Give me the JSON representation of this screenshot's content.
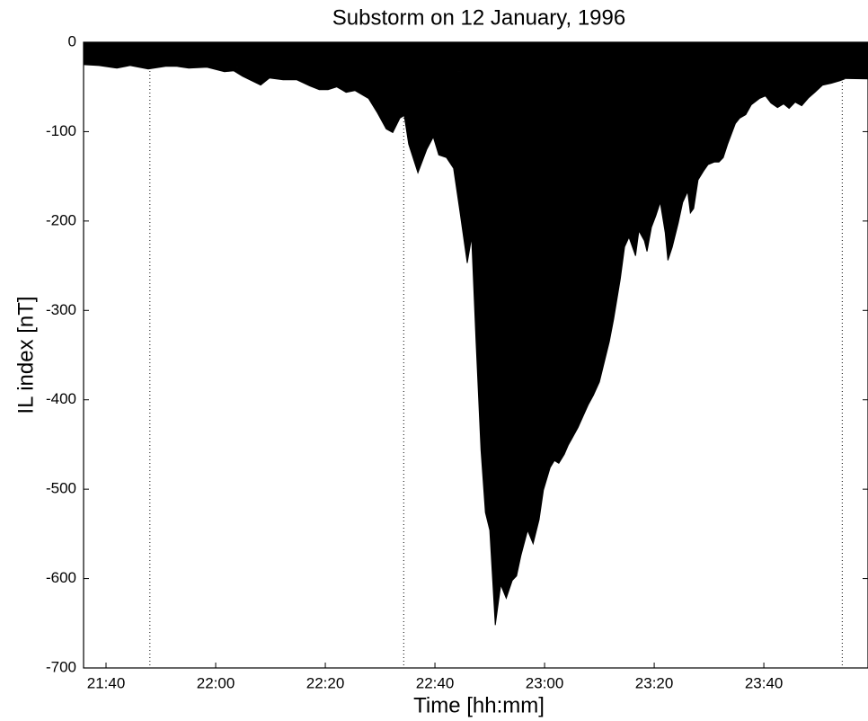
{
  "chart_data": {
    "type": "area",
    "title": "Substorm on 12 January, 1996",
    "x_label": "Time [hh:mm]",
    "y_label": "IL index [nT]",
    "color": "#000000",
    "xlim": [
      1295.9,
      1439
    ],
    "xticks": [
      {
        "value": 1300,
        "label": "21:40"
      },
      {
        "value": 1320,
        "label": "22:00"
      },
      {
        "value": 1340,
        "label": "22:20"
      },
      {
        "value": 1360,
        "label": "22:40"
      },
      {
        "value": 1380,
        "label": "23:00"
      },
      {
        "value": 1400,
        "label": "23:20"
      },
      {
        "value": 1420,
        "label": "23:40"
      }
    ],
    "ylim": [
      -700,
      0
    ],
    "yticks": [
      0,
      -100,
      -200,
      -300,
      -400,
      -500,
      -600,
      -700
    ],
    "vlines": [
      1308,
      1354.3,
      1434.3
    ],
    "x": [
      1295.9,
      1298.7,
      1302.0,
      1304.4,
      1307.7,
      1311.8,
      1315.1,
      1318.4,
      1321.6,
      1323.3,
      1324.9,
      1328.2,
      1329.8,
      1332.3,
      1334.8,
      1337.2,
      1338.9,
      1340.5,
      1342.1,
      1343.8,
      1345.4,
      1347.9,
      1349.5,
      1351.1,
      1352.3,
      1353.6,
      1354.4,
      1355.2,
      1356.9,
      1358.5,
      1359.7,
      1360.7,
      1362.1,
      1363.4,
      1364.6,
      1365.9,
      1366.7,
      1367.5,
      1368.4,
      1369.2,
      1370.0,
      1371.0,
      1372.0,
      1373.0,
      1374.1,
      1374.9,
      1375.7,
      1376.9,
      1377.9,
      1379.0,
      1379.8,
      1381.0,
      1381.8,
      1382.6,
      1383.6,
      1384.3,
      1385.2,
      1386.1,
      1387.2,
      1388.0,
      1388.9,
      1390.0,
      1391.0,
      1391.8,
      1392.6,
      1393.8,
      1394.6,
      1395.4,
      1396.6,
      1397.2,
      1398.2,
      1398.7,
      1399.5,
      1400.3,
      1401.1,
      1402.0,
      1402.5,
      1403.3,
      1404.4,
      1405.2,
      1406.1,
      1406.6,
      1407.2,
      1408.0,
      1409.0,
      1409.8,
      1411.0,
      1411.8,
      1412.6,
      1413.4,
      1414.8,
      1415.6,
      1416.7,
      1417.7,
      1419.2,
      1420.3,
      1421.3,
      1422.5,
      1423.6,
      1424.6,
      1425.7,
      1426.9,
      1428.2,
      1429.3,
      1430.7,
      1432.3,
      1433.9,
      1435.6,
      1437.2,
      1439.0
    ],
    "values": [
      -25,
      -26,
      -29,
      -26,
      -30,
      -26,
      -29,
      -28,
      -33,
      -32,
      -38,
      -48,
      -40,
      -42,
      -42,
      -49,
      -53,
      -53,
      -50,
      -56,
      -54,
      -63,
      -79,
      -97,
      -101,
      -85,
      -82,
      -114,
      -146,
      -120,
      -106,
      -126,
      -129,
      -141,
      -191,
      -247,
      -218,
      -335,
      -456,
      -526,
      -546,
      -652,
      -607,
      -622,
      -602,
      -597,
      -574,
      -546,
      -561,
      -534,
      -501,
      -476,
      -468,
      -471,
      -461,
      -451,
      -441,
      -431,
      -416,
      -405,
      -395,
      -380,
      -355,
      -335,
      -310,
      -265,
      -229,
      -218,
      -239,
      -211,
      -222,
      -234,
      -207,
      -194,
      -179,
      -213,
      -244,
      -229,
      -202,
      -179,
      -167,
      -191,
      -186,
      -154,
      -144,
      -137,
      -134,
      -134,
      -129,
      -114,
      -91,
      -85,
      -81,
      -70,
      -63,
      -60,
      -68,
      -73,
      -69,
      -74,
      -67,
      -71,
      -62,
      -56,
      -48,
      -46,
      -43,
      -39,
      -41,
      -41
    ]
  }
}
